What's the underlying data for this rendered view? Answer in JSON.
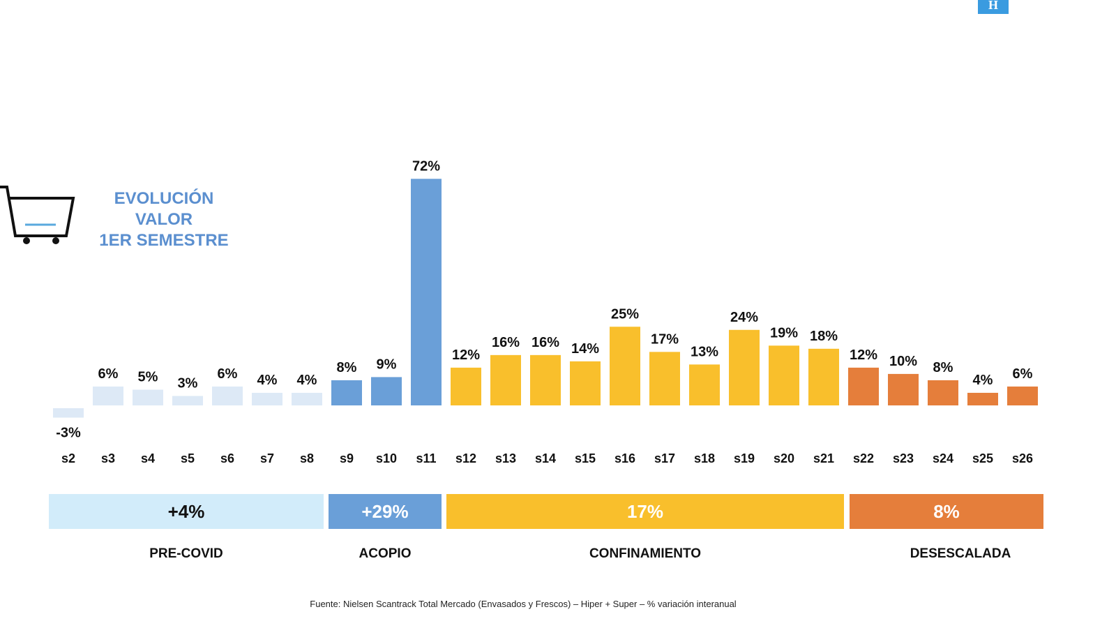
{
  "logo": "H",
  "title_lines": [
    "EVOLUCIÓN",
    "VALOR",
    "1ER SEMESTRE"
  ],
  "source": "Fuente: Nielsen Scantrack Total Mercado (Envasados y Frescos) – Hiper + Super – % variación interanual",
  "colors": {
    "pre_covid": "#dde9f6",
    "acopio": "#6a9fd8",
    "confinamiento": "#f9bf2c",
    "desescalada": "#e57e3b",
    "pre_covid_box": "#d2ecfa",
    "title": "#5b8fcf"
  },
  "phases": [
    {
      "name": "PRE-COVID",
      "value": "+4%",
      "color": "#d2ecfa",
      "text_color": "#111"
    },
    {
      "name": "ACOPIO",
      "value": "+29%",
      "color": "#6a9fd8",
      "text_color": "#fff"
    },
    {
      "name": "CONFINAMIENTO",
      "value": "17%",
      "color": "#f9bf2c",
      "text_color": "#fff"
    },
    {
      "name": "DESESCALADA",
      "value": "8%",
      "color": "#e57e3b",
      "text_color": "#fff"
    }
  ],
  "chart_data": {
    "type": "bar",
    "categories": [
      "s2",
      "s3",
      "s4",
      "s5",
      "s6",
      "s7",
      "s8",
      "s9",
      "s10",
      "s11",
      "s12",
      "s13",
      "s14",
      "s15",
      "s16",
      "s17",
      "s18",
      "s19",
      "s20",
      "s21",
      "s22",
      "s23",
      "s24",
      "s25",
      "s26"
    ],
    "values": [
      -3,
      6,
      5,
      3,
      6,
      4,
      4,
      8,
      9,
      72,
      12,
      16,
      16,
      14,
      25,
      17,
      13,
      24,
      19,
      18,
      12,
      10,
      8,
      4,
      6
    ],
    "phase_of_bar": [
      0,
      0,
      0,
      0,
      0,
      0,
      0,
      1,
      1,
      1,
      2,
      2,
      2,
      2,
      2,
      2,
      2,
      2,
      2,
      2,
      3,
      3,
      3,
      3,
      3
    ],
    "bar_colors": [
      "#dde9f6",
      "#6a9fd8",
      "#f9bf2c",
      "#e57e3b"
    ],
    "data_labels": [
      "-3%",
      "6%",
      "5%",
      "3%",
      "6%",
      "4%",
      "4%",
      "8%",
      "9%",
      "72%",
      "12%",
      "16%",
      "16%",
      "14%",
      "25%",
      "17%",
      "13%",
      "24%",
      "19%",
      "18%",
      "12%",
      "10%",
      "8%",
      "4%",
      "6%"
    ],
    "unit": "%",
    "grid": false,
    "legend": "none"
  }
}
